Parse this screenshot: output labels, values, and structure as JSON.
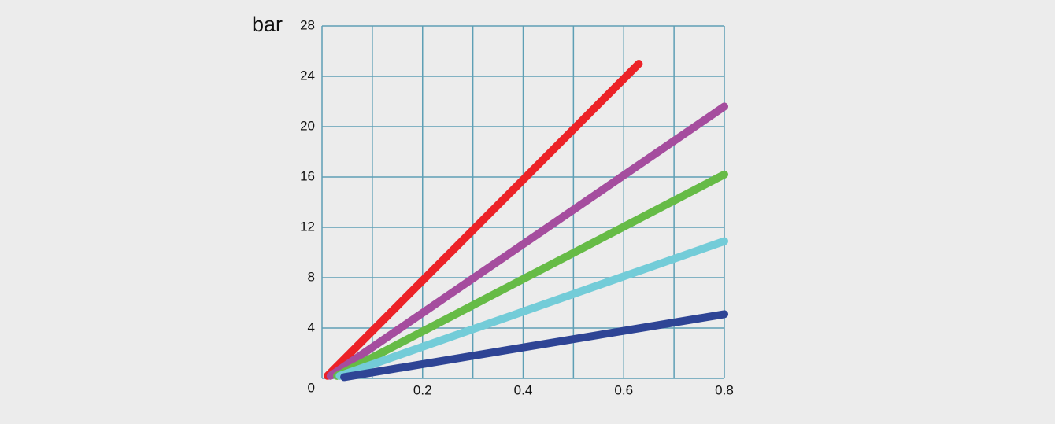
{
  "chart_data": {
    "type": "line",
    "y_label": "bar",
    "xlim": [
      0,
      0.8
    ],
    "xticks": [
      0.2,
      0.4,
      0.6,
      0.8
    ],
    "x_minor_ticks": [
      0.1,
      0.2,
      0.3,
      0.4,
      0.5,
      0.6,
      0.7,
      0.8
    ],
    "ylim": [
      0,
      28
    ],
    "yticks": [
      0,
      4,
      8,
      12,
      16,
      20,
      24,
      28
    ],
    "grid": true,
    "grid_color": "#5e9fb5",
    "series": [
      {
        "color": "#ec2227",
        "x": [
          0.011,
          0.63
        ],
        "values": [
          0.2,
          25
        ]
      },
      {
        "color": "#a54d9e",
        "x": [
          0.017,
          0.8
        ],
        "values": [
          0.2,
          21.6
        ]
      },
      {
        "color": "#66bb46",
        "x": [
          0.03,
          0.8
        ],
        "values": [
          0.2,
          16.2
        ]
      },
      {
        "color": "#73ccd8",
        "x": [
          0.035,
          0.8
        ],
        "values": [
          0.2,
          10.9
        ]
      },
      {
        "color": "#2e4495",
        "x": [
          0.044,
          0.8
        ],
        "values": [
          0.1,
          5.1
        ]
      }
    ]
  }
}
